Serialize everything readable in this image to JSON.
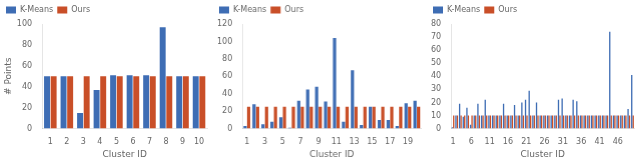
{
  "chart_data": [
    {
      "type": "bar",
      "categories": [
        "1",
        "2",
        "3",
        "4",
        "5",
        "6",
        "7",
        "8",
        "9",
        "10"
      ],
      "series": [
        {
          "name": "K-Means",
          "color": "#3E6DB4",
          "values": [
            50,
            50,
            15,
            37,
            51,
            51,
            51,
            97,
            50,
            50
          ]
        },
        {
          "name": "Ours",
          "color": "#C94F28",
          "values": [
            50,
            50,
            50,
            50,
            50,
            50,
            50,
            50,
            50,
            50
          ]
        }
      ],
      "xlabel": "Cluster ID",
      "ylabel": "# Points",
      "ylim": [
        0,
        100
      ],
      "yticks": [
        0,
        20,
        40,
        60,
        80,
        100
      ],
      "grid": false,
      "legend": "upper left"
    },
    {
      "type": "bar",
      "categories": [
        "1",
        null,
        "3",
        null,
        "5",
        null,
        "7",
        null,
        "9",
        null,
        "11",
        null,
        "13",
        null,
        "15",
        null,
        "17",
        null,
        "19",
        null
      ],
      "series": [
        {
          "name": "K-Means",
          "color": "#3E6DB4",
          "values": [
            3,
            28,
            5,
            8,
            13,
            1,
            32,
            45,
            48,
            31,
            104,
            8,
            67,
            4,
            25,
            10,
            10,
            3,
            29,
            32
          ]
        },
        {
          "name": "Ours",
          "color": "#C94F28",
          "values": [
            25,
            25,
            25,
            25,
            25,
            25,
            25,
            25,
            25,
            25,
            25,
            25,
            25,
            25,
            25,
            25,
            25,
            25,
            25,
            25
          ]
        }
      ],
      "xlabel": "Cluster ID",
      "ylim": [
        0,
        120
      ],
      "yticks": [
        0,
        20,
        40,
        60,
        80,
        100,
        120
      ],
      "grid": false,
      "legend": "upper left"
    },
    {
      "type": "bar",
      "categories": [
        "1",
        null,
        null,
        null,
        null,
        "6",
        null,
        null,
        null,
        null,
        "11",
        null,
        null,
        null,
        null,
        "16",
        null,
        null,
        null,
        null,
        "21",
        null,
        null,
        null,
        null,
        "26",
        null,
        null,
        null,
        null,
        "31",
        null,
        null,
        null,
        null,
        "36",
        null,
        null,
        null,
        null,
        "41",
        null,
        null,
        null,
        null,
        "46",
        null,
        null,
        null,
        null
      ],
      "series": [
        {
          "name": "K-Means",
          "color": "#3E6DB4",
          "values": [
            1,
            10,
            19,
            9,
            16,
            3,
            10,
            19,
            10,
            22,
            10,
            10,
            10,
            10,
            19,
            10,
            10,
            18,
            10,
            20,
            22,
            29,
            10,
            20,
            10,
            10,
            10,
            10,
            10,
            22,
            23,
            10,
            10,
            22,
            21,
            10,
            10,
            10,
            10,
            10,
            10,
            10,
            10,
            74,
            10,
            10,
            10,
            10,
            15,
            41
          ]
        },
        {
          "name": "Ours",
          "color": "#C94F28",
          "values": [
            10,
            10,
            10,
            10,
            10,
            10,
            10,
            10,
            10,
            10,
            10,
            10,
            10,
            10,
            10,
            10,
            10,
            10,
            10,
            10,
            10,
            10,
            10,
            10,
            10,
            10,
            10,
            10,
            10,
            10,
            10,
            10,
            10,
            10,
            10,
            10,
            10,
            10,
            10,
            10,
            10,
            10,
            10,
            10,
            10,
            10,
            10,
            10,
            10,
            10
          ]
        }
      ],
      "xlabel": "Cluster ID",
      "ylim": [
        0,
        80
      ],
      "yticks": [
        0,
        10,
        20,
        30,
        40,
        50,
        60,
        70,
        80
      ],
      "grid": false,
      "legend": "upper left"
    }
  ]
}
